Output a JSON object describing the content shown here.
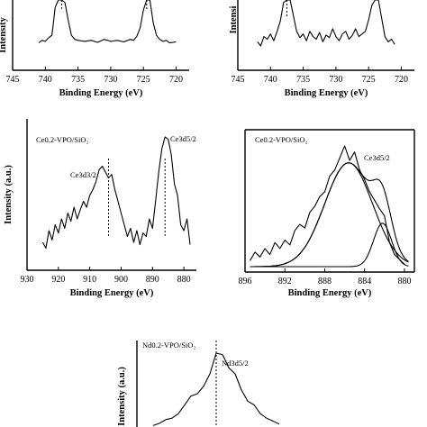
{
  "chart_data": [
    {
      "type": "line",
      "xlabel": "Binding Energy (eV)",
      "ylabel": "Intensity",
      "xlim": [
        745,
        718
      ],
      "xticks": [
        745,
        740,
        735,
        730,
        725,
        720
      ],
      "annotations": [],
      "markers": [
        737.5,
        724.5
      ],
      "x": [
        741,
        740.5,
        740,
        739.5,
        739,
        738.8,
        738.5,
        738,
        737.5,
        737,
        736.5,
        736,
        735.5,
        735,
        734,
        733,
        732,
        731,
        730,
        729,
        728,
        727,
        726.5,
        726,
        725.5,
        725,
        724.5,
        724,
        723.5,
        723,
        722.5,
        722,
        721.5,
        721,
        720
      ],
      "y": [
        0.15,
        0.2,
        0.18,
        0.25,
        0.3,
        0.5,
        0.85,
        1.0,
        1.0,
        0.95,
        0.6,
        0.3,
        0.22,
        0.2,
        0.18,
        0.2,
        0.16,
        0.22,
        0.18,
        0.2,
        0.17,
        0.22,
        0.2,
        0.28,
        0.45,
        0.8,
        1.0,
        1.0,
        0.55,
        0.3,
        0.22,
        0.18,
        0.2,
        0.15,
        0.17
      ]
    },
    {
      "type": "line",
      "xlabel": "Binding Energy (eV)",
      "ylabel": "Intensi",
      "xlim": [
        745,
        718
      ],
      "xticks": [
        745,
        740,
        735,
        730,
        725,
        720
      ],
      "annotations": [],
      "markers": [
        737.5
      ],
      "x": [
        742,
        741.5,
        741,
        740.5,
        740,
        739.5,
        739,
        738.5,
        738,
        737.5,
        737,
        736.5,
        736,
        735.5,
        735,
        734.5,
        734,
        733.5,
        733,
        732.5,
        732,
        731.5,
        731,
        730.5,
        730,
        729.5,
        729,
        728.5,
        728,
        727.5,
        727,
        726.5,
        726,
        725.5,
        725,
        724.5,
        724,
        723.5,
        723,
        722.5,
        722,
        721.5,
        721
      ],
      "y": [
        0.2,
        0.12,
        0.3,
        0.25,
        0.35,
        0.22,
        0.4,
        0.6,
        0.95,
        1.0,
        1.0,
        0.7,
        0.4,
        0.28,
        0.35,
        0.22,
        0.4,
        0.3,
        0.25,
        0.38,
        0.2,
        0.33,
        0.28,
        0.45,
        0.3,
        0.22,
        0.35,
        0.4,
        0.25,
        0.32,
        0.45,
        0.3,
        0.35,
        0.4,
        0.62,
        0.9,
        1.0,
        1.0,
        0.65,
        0.3,
        0.2,
        0.25,
        0.15
      ]
    },
    {
      "type": "line",
      "title": "Ce0.2-VPO/SiO₂",
      "xlabel": "Binding Energy (eV)",
      "ylabel": "Intensity (a.u.)",
      "xlim": [
        930,
        876
      ],
      "xticks": [
        930,
        920,
        910,
        900,
        890,
        880
      ],
      "annotations": [
        "Ce3d3/2",
        "Ce3d5/2"
      ],
      "markers": [
        904,
        886
      ],
      "x": [
        925,
        924,
        923,
        922,
        921,
        920,
        919,
        918,
        917,
        916,
        915,
        914,
        913,
        912,
        911,
        910,
        909,
        908,
        907,
        906,
        905,
        904,
        903,
        902,
        901,
        900,
        899,
        898,
        897,
        896,
        895,
        894,
        893,
        892,
        891,
        890,
        889,
        888,
        887,
        886,
        885,
        884,
        883,
        882,
        881,
        880,
        879,
        878
      ],
      "y": [
        0.1,
        0.05,
        0.2,
        0.12,
        0.25,
        0.18,
        0.3,
        0.22,
        0.35,
        0.28,
        0.4,
        0.3,
        0.38,
        0.45,
        0.4,
        0.5,
        0.55,
        0.62,
        0.72,
        0.75,
        0.7,
        0.65,
        0.68,
        0.55,
        0.45,
        0.35,
        0.25,
        0.15,
        0.22,
        0.1,
        0.2,
        0.08,
        0.18,
        0.15,
        0.3,
        0.22,
        0.45,
        0.7,
        0.9,
        1.0,
        0.98,
        0.85,
        0.6,
        0.5,
        0.25,
        0.2,
        0.3,
        0.08
      ]
    },
    {
      "type": "line",
      "title": "Ce0.2-VPO/SiO₂",
      "xlabel": "Binding Energy (eV)",
      "ylabel": "",
      "xlim": [
        896,
        879
      ],
      "xticks": [
        896,
        892,
        888,
        884,
        880
      ],
      "annotations": [
        "Ce3d5/2"
      ],
      "x": [
        895.5,
        895,
        894.5,
        894,
        893.5,
        893,
        892.5,
        892,
        891.5,
        891,
        890.5,
        890,
        889.5,
        889,
        888.5,
        888,
        887.5,
        887,
        886.5,
        886,
        885.5,
        885,
        884.5,
        884,
        883.5,
        883,
        882.5,
        882,
        881.5,
        881,
        880.5,
        880
      ],
      "y": [
        0.05,
        0.12,
        0.08,
        0.15,
        0.1,
        0.2,
        0.15,
        0.22,
        0.18,
        0.3,
        0.35,
        0.32,
        0.45,
        0.5,
        0.58,
        0.62,
        0.75,
        0.8,
        0.9,
        1.0,
        0.88,
        0.95,
        0.8,
        0.72,
        0.62,
        0.55,
        0.48,
        0.42,
        0.2,
        0.1,
        0.06,
        0.02
      ],
      "fit_components": [
        {
          "center": 885.6,
          "sigma": 2.4,
          "amp": 0.86
        },
        {
          "center": 882.2,
          "sigma": 0.9,
          "amp": 0.36
        }
      ]
    },
    {
      "type": "line",
      "title": "Nd0.2-VPO/SiO₂",
      "xlabel": "",
      "ylabel": "Intensity (a.u.)",
      "annotations": [
        "Nd3d5/2"
      ],
      "markers": [
        0.5
      ],
      "x": [
        0,
        0.05,
        0.1,
        0.15,
        0.2,
        0.25,
        0.3,
        0.35,
        0.4,
        0.45,
        0.5,
        0.55,
        0.6,
        0.65,
        0.7,
        0.75,
        0.8,
        0.85,
        0.9,
        0.95,
        1.0
      ],
      "y": [
        0.02,
        0.05,
        0.1,
        0.12,
        0.18,
        0.3,
        0.42,
        0.45,
        0.55,
        0.72,
        1.0,
        0.98,
        0.8,
        0.72,
        0.5,
        0.35,
        0.3,
        0.18,
        0.12,
        0.08,
        0.04
      ]
    }
  ]
}
